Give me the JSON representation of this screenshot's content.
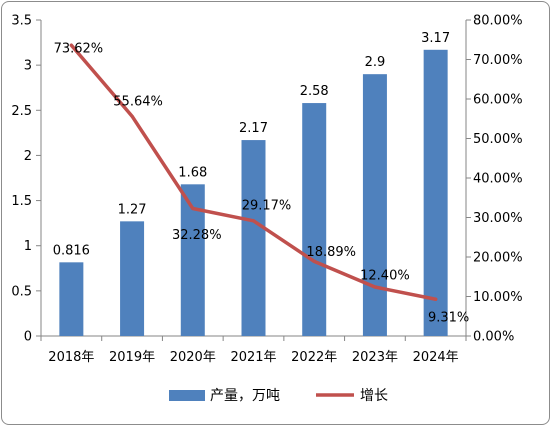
{
  "chart_data": {
    "type": "bar",
    "categories": [
      "2018年",
      "2019年",
      "2020年",
      "2021年",
      "2022年",
      "2023年",
      "2024年"
    ],
    "series": [
      {
        "name": "产量，万吨",
        "type": "bar",
        "axis": "left",
        "values": [
          0.816,
          1.27,
          1.68,
          2.17,
          2.58,
          2.9,
          3.17
        ],
        "labels": [
          "0.816",
          "1.27",
          "1.68",
          "2.17",
          "2.58",
          "2.9",
          "3.17"
        ],
        "color": "#4f81bd"
      },
      {
        "name": "增长",
        "type": "line",
        "axis": "right",
        "values": [
          73.62,
          55.64,
          32.28,
          29.17,
          18.89,
          12.4,
          9.31
        ],
        "labels": [
          "73.62%",
          "55.64%",
          "32.28%",
          "29.17%",
          "18.89%",
          "12.40%",
          "9.31%"
        ],
        "color": "#c0504d"
      }
    ],
    "y_left": {
      "range": [
        0,
        3.5
      ],
      "ticks": [
        0,
        0.5,
        1,
        1.5,
        2,
        2.5,
        3,
        3.5
      ],
      "tick_labels": [
        "0",
        "0.5",
        "1",
        "1.5",
        "2",
        "2.5",
        "3",
        "3.5"
      ]
    },
    "y_right": {
      "range": [
        0,
        80
      ],
      "ticks": [
        0,
        10,
        20,
        30,
        40,
        50,
        60,
        70,
        80
      ],
      "tick_labels": [
        "0.00%",
        "10.00%",
        "20.00%",
        "30.00%",
        "40.00%",
        "50.00%",
        "60.00%",
        "70.00%",
        "80.00%"
      ]
    },
    "grid": false,
    "legend_position": "bottom"
  }
}
